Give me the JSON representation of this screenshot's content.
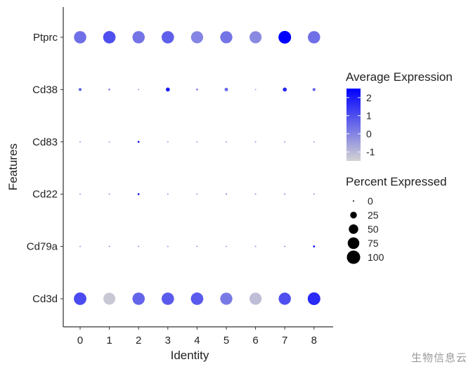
{
  "chart_data": {
    "type": "scatter",
    "subtype": "dot-plot",
    "xlabel": "Identity",
    "ylabel": "Features",
    "categories": [
      "0",
      "1",
      "2",
      "3",
      "4",
      "5",
      "6",
      "7",
      "8"
    ],
    "features": [
      "Ptprc",
      "Cd38",
      "Cd83",
      "Cd22",
      "Cd79a",
      "Cd3d"
    ],
    "grid": false,
    "legend_position": "right",
    "color_legend": {
      "title": "Average Expression",
      "ticks": [
        2,
        1,
        0,
        -1
      ],
      "range": [
        -1.5,
        2.5
      ],
      "low_color": "#d3d3d3",
      "high_color": "#0000ff"
    },
    "size_legend": {
      "title": "Percent Expressed",
      "ticks": [
        0,
        25,
        50,
        75,
        100
      ]
    },
    "points": [
      {
        "feature": "Ptprc",
        "values": [
          {
            "x": "0",
            "avg_exp": 0.4,
            "pct_exp": 85
          },
          {
            "x": "1",
            "avg_exp": 1.0,
            "pct_exp": 87
          },
          {
            "x": "2",
            "avg_exp": 0.3,
            "pct_exp": 85
          },
          {
            "x": "3",
            "avg_exp": 0.7,
            "pct_exp": 86
          },
          {
            "x": "4",
            "avg_exp": 0.0,
            "pct_exp": 83
          },
          {
            "x": "5",
            "avg_exp": 0.3,
            "pct_exp": 83
          },
          {
            "x": "6",
            "avg_exp": -0.1,
            "pct_exp": 82
          },
          {
            "x": "7",
            "avg_exp": 2.5,
            "pct_exp": 90
          },
          {
            "x": "8",
            "avg_exp": 0.4,
            "pct_exp": 85
          }
        ]
      },
      {
        "feature": "Cd38",
        "values": [
          {
            "x": "0",
            "avg_exp": 0.6,
            "pct_exp": 5
          },
          {
            "x": "1",
            "avg_exp": 0.1,
            "pct_exp": 2
          },
          {
            "x": "2",
            "avg_exp": -0.2,
            "pct_exp": 1
          },
          {
            "x": "3",
            "avg_exp": 2.0,
            "pct_exp": 9
          },
          {
            "x": "4",
            "avg_exp": 0.2,
            "pct_exp": 2
          },
          {
            "x": "5",
            "avg_exp": 0.5,
            "pct_exp": 7
          },
          {
            "x": "6",
            "avg_exp": -0.5,
            "pct_exp": 1
          },
          {
            "x": "7",
            "avg_exp": 1.8,
            "pct_exp": 9
          },
          {
            "x": "8",
            "avg_exp": 0.6,
            "pct_exp": 5
          }
        ]
      },
      {
        "feature": "Cd83",
        "values": [
          {
            "x": "0",
            "avg_exp": -0.2,
            "pct_exp": 1
          },
          {
            "x": "1",
            "avg_exp": -0.4,
            "pct_exp": 1
          },
          {
            "x": "2",
            "avg_exp": 2.5,
            "pct_exp": 2
          },
          {
            "x": "3",
            "avg_exp": -0.3,
            "pct_exp": 1
          },
          {
            "x": "4",
            "avg_exp": -0.3,
            "pct_exp": 1
          },
          {
            "x": "5",
            "avg_exp": -0.3,
            "pct_exp": 1
          },
          {
            "x": "6",
            "avg_exp": -0.3,
            "pct_exp": 1
          },
          {
            "x": "7",
            "avg_exp": -0.2,
            "pct_exp": 1
          },
          {
            "x": "8",
            "avg_exp": -0.4,
            "pct_exp": 1
          }
        ]
      },
      {
        "feature": "Cd22",
        "values": [
          {
            "x": "0",
            "avg_exp": -0.3,
            "pct_exp": 1
          },
          {
            "x": "1",
            "avg_exp": -0.1,
            "pct_exp": 1
          },
          {
            "x": "2",
            "avg_exp": 2.3,
            "pct_exp": 2
          },
          {
            "x": "3",
            "avg_exp": -0.2,
            "pct_exp": 1
          },
          {
            "x": "4",
            "avg_exp": -0.3,
            "pct_exp": 1
          },
          {
            "x": "5",
            "avg_exp": 0.4,
            "pct_exp": 1
          },
          {
            "x": "6",
            "avg_exp": -0.2,
            "pct_exp": 1
          },
          {
            "x": "7",
            "avg_exp": 0.1,
            "pct_exp": 1
          },
          {
            "x": "8",
            "avg_exp": -0.1,
            "pct_exp": 1
          }
        ]
      },
      {
        "feature": "Cd79a",
        "values": [
          {
            "x": "0",
            "avg_exp": -0.3,
            "pct_exp": 1
          },
          {
            "x": "1",
            "avg_exp": -0.2,
            "pct_exp": 1
          },
          {
            "x": "2",
            "avg_exp": -0.3,
            "pct_exp": 1
          },
          {
            "x": "3",
            "avg_exp": -0.3,
            "pct_exp": 1
          },
          {
            "x": "4",
            "avg_exp": -0.3,
            "pct_exp": 1
          },
          {
            "x": "5",
            "avg_exp": -0.3,
            "pct_exp": 1
          },
          {
            "x": "6",
            "avg_exp": -0.3,
            "pct_exp": 1
          },
          {
            "x": "7",
            "avg_exp": -0.2,
            "pct_exp": 1
          },
          {
            "x": "8",
            "avg_exp": 2.5,
            "pct_exp": 2
          }
        ]
      },
      {
        "feature": "Cd3d",
        "values": [
          {
            "x": "0",
            "avg_exp": 1.1,
            "pct_exp": 88
          },
          {
            "x": "1",
            "avg_exp": -1.3,
            "pct_exp": 80
          },
          {
            "x": "2",
            "avg_exp": 0.6,
            "pct_exp": 85
          },
          {
            "x": "3",
            "avg_exp": 0.8,
            "pct_exp": 86
          },
          {
            "x": "4",
            "avg_exp": 0.8,
            "pct_exp": 87
          },
          {
            "x": "5",
            "avg_exp": 0.2,
            "pct_exp": 83
          },
          {
            "x": "6",
            "avg_exp": -1.1,
            "pct_exp": 82
          },
          {
            "x": "7",
            "avg_exp": 1.0,
            "pct_exp": 84
          },
          {
            "x": "8",
            "avg_exp": 1.7,
            "pct_exp": 90
          }
        ]
      }
    ]
  },
  "watermark": "生物信息云"
}
